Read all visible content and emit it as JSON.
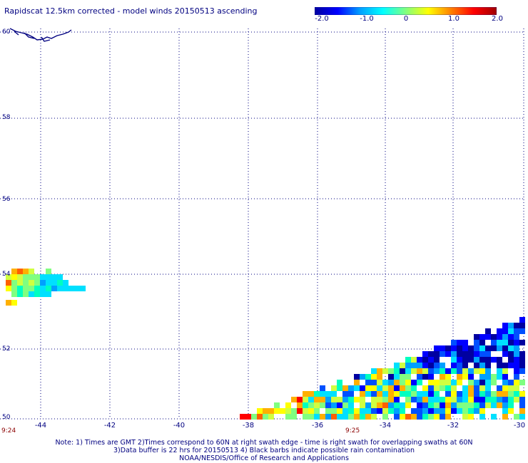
{
  "title": "Rapidscat 12.5km corrected - model winds 20150513 ascending",
  "colorbar": {
    "ticks": [
      "-2.0",
      "-1.0",
      "0",
      "1.0",
      "2.0"
    ],
    "colors": [
      "#0000a0",
      "#0000ff",
      "#00a0ff",
      "#00ffff",
      "#80ff80",
      "#ffff00",
      "#ff8000",
      "#ff0000",
      "#a00000"
    ]
  },
  "map": {
    "lat_labels": [
      "60",
      "58",
      "56",
      "54",
      "52",
      "50"
    ],
    "lon_labels": [
      "-44",
      "-42",
      "-40",
      "-38",
      "-36",
      "-34",
      "-32",
      "-30"
    ],
    "time_labels": [
      "9:24",
      "9:25"
    ],
    "grid_color": "#000080",
    "coast_color": "#000080"
  },
  "notes": [
    "Note: 1) Times are GMT 2)Times correspond to 60N at right swath edge - time is right swath for overlapping swaths at 60N",
    "3)Data buffer is 22 hrs for 20150513 4) Black barbs indicate possible rain contamination",
    "NOAA/NESDIS/Office of Research and Applications"
  ]
}
